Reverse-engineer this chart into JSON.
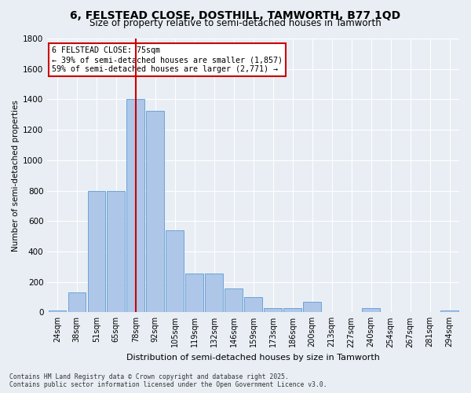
{
  "title": "6, FELSTEAD CLOSE, DOSTHILL, TAMWORTH, B77 1QD",
  "subtitle": "Size of property relative to semi-detached houses in Tamworth",
  "xlabel": "Distribution of semi-detached houses by size in Tamworth",
  "ylabel": "Number of semi-detached properties",
  "categories": [
    "24sqm",
    "38sqm",
    "51sqm",
    "65sqm",
    "78sqm",
    "92sqm",
    "105sqm",
    "119sqm",
    "132sqm",
    "146sqm",
    "159sqm",
    "173sqm",
    "186sqm",
    "200sqm",
    "213sqm",
    "227sqm",
    "240sqm",
    "254sqm",
    "267sqm",
    "281sqm",
    "294sqm"
  ],
  "values": [
    10,
    130,
    800,
    800,
    1400,
    1325,
    540,
    255,
    255,
    155,
    100,
    30,
    30,
    70,
    0,
    0,
    30,
    0,
    0,
    0,
    10
  ],
  "bar_color": "#aec6e8",
  "bar_edge_color": "#5b9bd5",
  "vline_x_index": 4,
  "highlight_color": "#cc0000",
  "annotation_title": "6 FELSTEAD CLOSE: 75sqm",
  "annotation_line1": "← 39% of semi-detached houses are smaller (1,857)",
  "annotation_line2": "59% of semi-detached houses are larger (2,771) →",
  "ylim": [
    0,
    1800
  ],
  "yticks": [
    0,
    200,
    400,
    600,
    800,
    1000,
    1200,
    1400,
    1600,
    1800
  ],
  "background_color": "#e8eef4",
  "grid_color": "#ffffff",
  "footnote1": "Contains HM Land Registry data © Crown copyright and database right 2025.",
  "footnote2": "Contains public sector information licensed under the Open Government Licence v3.0."
}
